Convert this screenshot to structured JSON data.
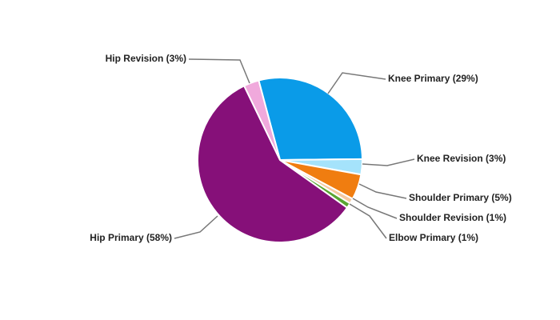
{
  "chart_data": {
    "type": "pie",
    "values": [
      29,
      3,
      5,
      1,
      1,
      58,
      3
    ],
    "value_labels": [
      "Knee Primary (29%)",
      "Knee Revision (3%)",
      "Shoulder Primary (5%)",
      "Shoulder Revision (1%)",
      "Elbow Primary (1%)",
      "Hip Primary (58%)",
      "Hip Revision (3%)"
    ],
    "colors": [
      "#0a9be8",
      "#a5e3fb",
      "#f07d10",
      "#f5c9a0",
      "#5aa532",
      "#861079",
      "#f0a9dc"
    ]
  }
}
